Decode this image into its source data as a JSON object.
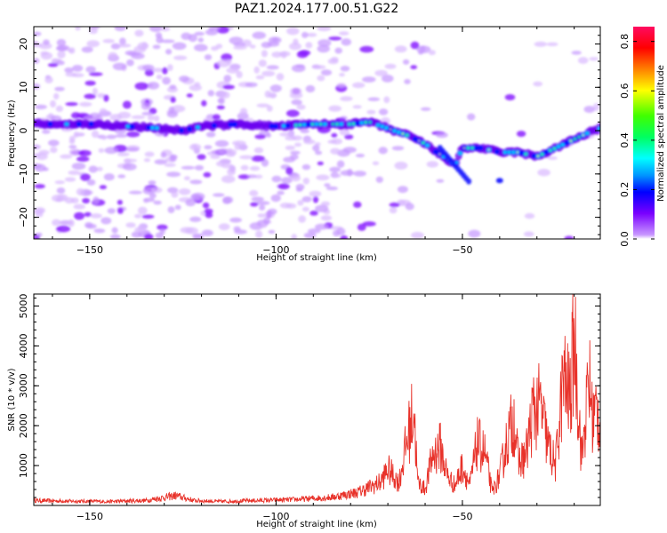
{
  "title": "PAZ1.2024.177.00.51.G22",
  "chart_data": [
    {
      "type": "heatmap",
      "title": "PAZ1.2024.177.00.51.G22",
      "xlabel": "Height of straight line (km)",
      "ylabel": "Frequency (Hz)",
      "xlim": [
        -165,
        -13
      ],
      "ylim": [
        -25,
        24
      ],
      "xticks": [
        -150,
        -100,
        -50
      ],
      "yticks": [
        -20,
        -10,
        0,
        10,
        20
      ],
      "colorbar": {
        "label": "Normalized spectral amplitude",
        "range": [
          0,
          0.86
        ],
        "ticks": [
          0.0,
          0.2,
          0.4,
          0.6,
          0.8
        ],
        "colormap": "gist_rainbow_r (white below threshold)"
      },
      "ridge_peak_frequency": {
        "x": [
          -165,
          -150,
          -140,
          -130,
          -125,
          -120,
          -110,
          -100,
          -90,
          -80,
          -75,
          -70,
          -65,
          -60,
          -57,
          -55,
          -52,
          -50,
          -45,
          -40,
          -35,
          -30,
          -25,
          -20,
          -15,
          -13
        ],
        "y": [
          1.5,
          1.5,
          1.0,
          0.5,
          0,
          1.0,
          1.5,
          1.0,
          1.5,
          1.5,
          2.0,
          0.5,
          -1,
          -3,
          -5,
          -6,
          -8,
          -4,
          -4,
          -5,
          -5,
          -6,
          -4,
          -2,
          0,
          0.5
        ]
      }
    },
    {
      "type": "line",
      "title": "",
      "xlabel": "Height of straight line (km)",
      "ylabel": "SNR (10 * v/v)",
      "xlim": [
        -165,
        -13
      ],
      "ylim": [
        0,
        5300
      ],
      "xticks": [
        -150,
        -100,
        -50
      ],
      "yticks": [
        1000,
        2000,
        3000,
        4000,
        5000
      ],
      "series": [
        {
          "color": "#e8322a",
          "x": [
            -165,
            -155,
            -145,
            -135,
            -127,
            -122,
            -115,
            -105,
            -95,
            -85,
            -78,
            -72,
            -70,
            -67,
            -65,
            -63,
            -62,
            -60,
            -58,
            -56,
            -54,
            -52,
            -50,
            -48,
            -46,
            -44,
            -42,
            -40,
            -38,
            -36,
            -35,
            -33,
            -31,
            -29,
            -27,
            -25,
            -23,
            -21,
            -20,
            -18,
            -16,
            -15,
            -14,
            -13
          ],
          "y": [
            150,
            130,
            120,
            150,
            300,
            150,
            120,
            150,
            180,
            250,
            400,
            700,
            1100,
            700,
            1900,
            2950,
            700,
            500,
            1500,
            1800,
            900,
            600,
            1200,
            600,
            1900,
            1600,
            400,
            900,
            2000,
            2700,
            1300,
            1500,
            2900,
            3000,
            1800,
            1200,
            3800,
            3300,
            5200,
            1400,
            3800,
            2600,
            2900,
            2500
          ]
        }
      ]
    }
  ]
}
